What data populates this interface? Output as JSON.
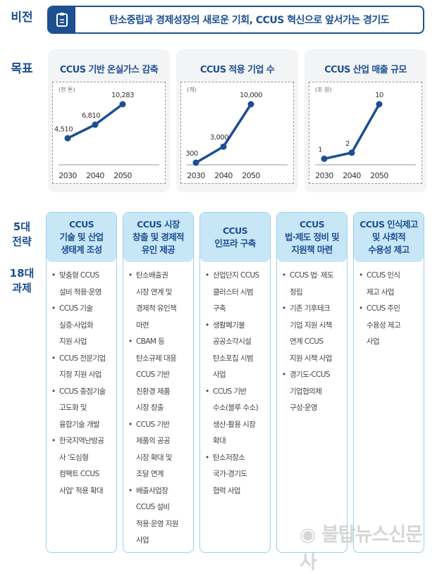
{
  "labels": {
    "vision": "비전",
    "goals": "목표",
    "strategies": "5대\n전략",
    "tasks": "18대\n과제"
  },
  "vision": {
    "icon": "clipboard-icon",
    "text": "탄소중립과 경제성장의 새로운 기회, CCUS 혁신으로 앞서가는 경기도"
  },
  "colors": {
    "primary": "#1d4f91",
    "header": "#c7e6f6",
    "border": "#9dd0ea"
  },
  "chart_data": [
    {
      "type": "line",
      "title": "CCUS 기반 온실가스 감축",
      "unit": "(천 톤)",
      "categories": [
        "2030",
        "2040",
        "2050"
      ],
      "values": [
        4510,
        6810,
        10283
      ],
      "labels": [
        "4,510",
        "6,810",
        "10,283"
      ]
    },
    {
      "type": "line",
      "title": "CCUS 적용 기업 수",
      "unit": "(개)",
      "categories": [
        "2030",
        "2040",
        "2050"
      ],
      "values": [
        300,
        3000,
        10000
      ],
      "labels": [
        "300",
        "3,000",
        "10,000"
      ]
    },
    {
      "type": "line",
      "title": "CCUS 산업 매출 규모",
      "unit": "(조 원)",
      "categories": [
        "2030",
        "2040",
        "2050"
      ],
      "values": [
        1,
        2,
        10
      ],
      "labels": [
        "1",
        "2",
        "10"
      ]
    }
  ],
  "strategies": [
    {
      "title": "CCUS\n기술 및 산업\n생태계 조성",
      "tasks": [
        "맞춤형 CCUS\n설비 적용·운영",
        "CCUS 기술\n실증·사업화\n지원 사업",
        "CCUS 전문기업\n지정 지원 사업",
        "CCUS 중점기술\n고도화 및\n융합기술 개발",
        "한국지역난방공\n사 '도심형\n컴팩트 CCUS\n사업' 적용 확대"
      ]
    },
    {
      "title": "CCUS 시장\n창출 및 경제적\n유인 제공",
      "tasks": [
        "탄소배출권\n시장 연계 및\n경제적 유인책\n마련",
        "CBAM 등\n탄소규제 대응\nCCUS 기반\n친환경 제품\n시장 창출",
        "CCUS 기반\n제품의 공공\n시장 확대 및\n조달 연계",
        "배출사업장\nCCUS 설비\n적용·운영 지원\n사업"
      ]
    },
    {
      "title": "CCUS\n인프라 구축",
      "tasks": [
        "산업단지 CCUS\n클러스터 시범\n구축",
        "생활폐기물\n공공소각시설\n탄소포집 시범\n사업",
        "CCUS 기반\n수소(블루 수소)\n생산-활용 시장\n확대",
        "탄소저장소\n국가-경기도\n협력 사업"
      ]
    },
    {
      "title": "CCUS\n법·제도 정비 및\n지원책 마련",
      "tasks": [
        "CCUS 법· 제도\n정립",
        "기존 기후테크\n기업 지원 시책\n연계 CCUS\n지원 시책 사업",
        "경기도-CCUS\n기업협의체\n구성·운영"
      ]
    },
    {
      "title": "CCUS 인식제고\n및 사회적\n수용성 제고",
      "tasks": [
        "CCUS 인식\n제고 사업",
        "CCUS 주민\n수용성 제고\n사업"
      ]
    }
  ],
  "watermark": "불탑뉴스신문사"
}
